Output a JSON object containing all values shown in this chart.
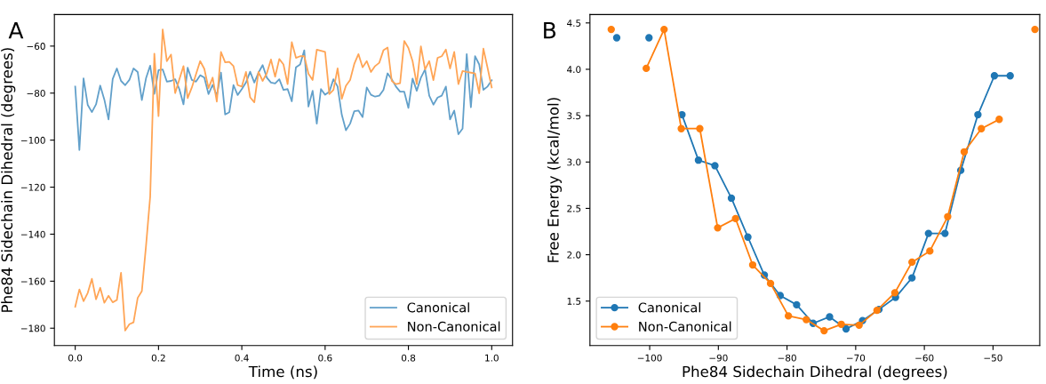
{
  "chart_data": [
    {
      "type": "line",
      "xlabel": "Time (ns)",
      "ylabel": "Phe84 Sidechain Dihedral (degrees)",
      "annotations": [
        "A"
      ],
      "xlim": [
        -0.05,
        1.05
      ],
      "ylim": [
        -187.4,
        -46.6
      ],
      "xticks": [
        {
          "value": 0,
          "label": "0.0"
        },
        {
          "value": 0.2,
          "label": "0.2"
        },
        {
          "value": 0.4,
          "label": "0.4"
        },
        {
          "value": 0.6,
          "label": "0.6"
        },
        {
          "value": 0.8,
          "label": "0.8"
        },
        {
          "value": 1.0,
          "label": "1.0"
        }
      ],
      "yticks": [
        {
          "value": -180,
          "label": "−180"
        },
        {
          "value": -160,
          "label": "−160"
        },
        {
          "value": -140,
          "label": "−140"
        },
        {
          "value": -120,
          "label": "−120"
        },
        {
          "value": -100,
          "label": "−100"
        },
        {
          "value": -80,
          "label": "−80"
        },
        {
          "value": -60,
          "label": "−60"
        }
      ],
      "x": [
        0.0,
        0.01,
        0.02,
        0.03,
        0.04,
        0.05,
        0.06,
        0.07,
        0.08,
        0.09,
        0.1,
        0.11,
        0.12,
        0.13,
        0.14,
        0.15,
        0.16,
        0.17,
        0.18,
        0.19,
        0.2,
        0.21,
        0.22,
        0.23,
        0.24,
        0.25,
        0.26,
        0.27,
        0.28,
        0.29,
        0.3,
        0.31,
        0.32,
        0.33,
        0.34,
        0.35,
        0.36,
        0.37,
        0.38,
        0.39,
        0.4,
        0.41,
        0.42,
        0.43,
        0.44,
        0.45,
        0.46,
        0.47,
        0.48,
        0.49,
        0.5,
        0.51,
        0.52,
        0.53,
        0.54,
        0.55,
        0.56,
        0.57,
        0.58,
        0.59,
        0.6,
        0.61,
        0.62,
        0.63,
        0.64,
        0.65,
        0.66,
        0.67,
        0.68,
        0.69,
        0.7,
        0.71,
        0.72,
        0.73,
        0.74,
        0.75,
        0.76,
        0.77,
        0.78,
        0.79,
        0.8,
        0.81,
        0.82,
        0.83,
        0.84,
        0.85,
        0.86,
        0.87,
        0.88,
        0.89,
        0.9,
        0.91,
        0.92,
        0.93,
        0.94,
        0.95,
        0.96,
        0.97,
        0.98,
        0.99,
        1.0
      ],
      "legend": "bottom right",
      "grid": false,
      "marker": "none",
      "line_style": "solid",
      "series": [
        {
          "name": "Canonical",
          "color": "#62a0ca",
          "values": [
            -77.2,
            -104.2,
            -73.7,
            -85,
            -88.1,
            -84.8,
            -76.8,
            -82.8,
            -91.2,
            -74,
            -69.5,
            -74.8,
            -76.6,
            -74.4,
            -69.5,
            -71,
            -83,
            -73.7,
            -68.3,
            -80.3,
            -70.2,
            -69.9,
            -75.1,
            -74.8,
            -74.1,
            -78.3,
            -84.8,
            -69.2,
            -74.4,
            -75.1,
            -72.4,
            -73.4,
            -80.4,
            -76.5,
            -81.1,
            -71.3,
            -89.1,
            -88.1,
            -76.6,
            -80.8,
            -78.3,
            -75.5,
            -70.9,
            -75.5,
            -71.3,
            -68.1,
            -73.4,
            -75.5,
            -75.9,
            -74.1,
            -78.6,
            -78.3,
            -83.5,
            -69,
            -67.8,
            -61.8,
            -85.7,
            -79,
            -93,
            -78.3,
            -80.7,
            -79.4,
            -74.1,
            -77.2,
            -89.2,
            -95.8,
            -93,
            -87.7,
            -87.4,
            -90.2,
            -77.6,
            -80.7,
            -81.5,
            -81.1,
            -78.7,
            -71.6,
            -74.1,
            -77.2,
            -79.4,
            -79.4,
            -86.3,
            -73.8,
            -79,
            -73.4,
            -69.9,
            -81.1,
            -84.9,
            -81.9,
            -81.1,
            -77.2,
            -91.2,
            -87.4,
            -97.5,
            -95.1,
            -63.4,
            -86,
            -64.3,
            -67.8,
            -78.6,
            -77.2,
            -74.5
          ]
        },
        {
          "name": "Non-Canonical",
          "color": "#ffa556",
          "values": [
            -170.9,
            -163.5,
            -168.5,
            -165,
            -159,
            -167.7,
            -162.8,
            -169.2,
            -166.2,
            -169,
            -168,
            -156.4,
            -181,
            -178.3,
            -177.5,
            -167.1,
            -164.2,
            -145,
            -124,
            -63.2,
            -89.8,
            -52.9,
            -66.4,
            -63.6,
            -80,
            -74.1,
            -68.5,
            -82.1,
            -77.6,
            -72,
            -66.4,
            -69.7,
            -77.9,
            -73.4,
            -83.6,
            -62.5,
            -66.9,
            -66.7,
            -68.5,
            -76.6,
            -77.2,
            -71,
            -81.8,
            -83.9,
            -71,
            -74.8,
            -71.6,
            -65.7,
            -73,
            -65.5,
            -67.8,
            -76.2,
            -58.3,
            -65,
            -64.3,
            -64.3,
            -71.8,
            -74.4,
            -61.5,
            -62,
            -62.5,
            -80.4,
            -78.6,
            -69.5,
            -82.4,
            -76.9,
            -74.4,
            -67.6,
            -63.4,
            -69,
            -66.4,
            -71,
            -68.5,
            -67.1,
            -61.8,
            -60.6,
            -74.8,
            -76.2,
            -75.8,
            -57.8,
            -60.8,
            -66.4,
            -76.2,
            -60.1,
            -69.9,
            -66.4,
            -74.5,
            -65,
            -64.3,
            -61.5,
            -69.5,
            -62.5,
            -76.2,
            -70.6,
            -71,
            -71.3,
            -71.6,
            -80.1,
            -61.1,
            -69.2,
            -77.6
          ]
        }
      ]
    },
    {
      "type": "line",
      "xlabel": "Phe84 Sidechain Dihedral (degrees)",
      "ylabel": "Free Energy (kcal/mol)",
      "annotations": [
        "B"
      ],
      "xlim": [
        -108.7,
        -43.2
      ],
      "ylim": [
        1.02,
        4.59
      ],
      "xticks": [
        {
          "value": -100,
          "label": "−100"
        },
        {
          "value": -90,
          "label": "−90"
        },
        {
          "value": -80,
          "label": "−80"
        },
        {
          "value": -70,
          "label": "−70"
        },
        {
          "value": -60,
          "label": "−60"
        },
        {
          "value": -50,
          "label": "−50"
        }
      ],
      "yticks": [
        {
          "value": 1.5,
          "label": "1.5"
        },
        {
          "value": 2.0,
          "label": "2.0"
        },
        {
          "value": 2.5,
          "label": "2.5"
        },
        {
          "value": 3.0,
          "label": "3.0"
        },
        {
          "value": 3.5,
          "label": "3.5"
        },
        {
          "value": 4.0,
          "label": "4.0"
        },
        {
          "value": 4.5,
          "label": "4.5"
        }
      ],
      "legend": "bottom left",
      "grid": false,
      "marker": "circle",
      "line_style": "solid",
      "series": [
        {
          "name": "Canonical",
          "color": "#1f77b4",
          "x": [
            -104.8,
            -102.4,
            -100.1,
            -97.7,
            -95.3,
            -92.9,
            -90.5,
            -88.1,
            -85.7,
            -83.3,
            -81.0,
            -78.6,
            -76.2,
            -73.8,
            -71.4,
            -69.0,
            -66.6,
            -64.2,
            -61.8,
            -59.4,
            -57.0,
            -54.7,
            -52.2,
            -49.8,
            -47.5
          ],
          "values": [
            4.34,
            null,
            4.34,
            null,
            3.51,
            3.02,
            2.96,
            2.61,
            2.19,
            1.78,
            1.56,
            1.46,
            1.26,
            1.33,
            1.2,
            1.29,
            1.41,
            1.54,
            1.75,
            2.23,
            2.23,
            2.91,
            3.51,
            3.93,
            3.93
          ]
        },
        {
          "name": "Non-Canonical",
          "color": "#ff7f0e",
          "x": [
            -105.6,
            -103.0,
            -100.5,
            -97.9,
            -95.4,
            -92.7,
            -90.1,
            -87.5,
            -85.0,
            -82.4,
            -79.8,
            -77.2,
            -74.6,
            -72.1,
            -69.5,
            -66.9,
            -64.3,
            -61.8,
            -59.2,
            -56.6,
            -54.2,
            -51.7,
            -49.1,
            -46.5,
            -43.9
          ],
          "values": [
            4.43,
            null,
            4.01,
            4.43,
            3.36,
            3.36,
            2.29,
            2.39,
            1.89,
            1.69,
            1.34,
            1.3,
            1.18,
            1.25,
            1.24,
            1.4,
            1.59,
            1.92,
            2.04,
            2.41,
            3.11,
            3.36,
            3.46,
            null,
            4.43
          ]
        }
      ]
    }
  ]
}
